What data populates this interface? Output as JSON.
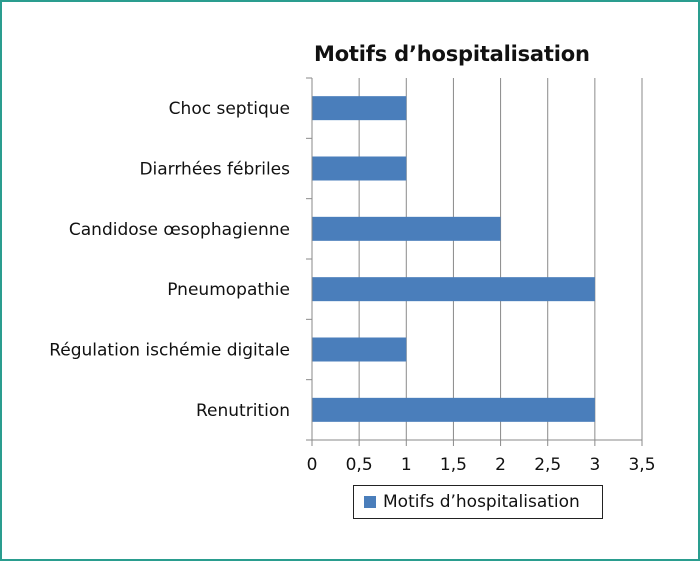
{
  "chart_data": {
    "type": "bar",
    "orientation": "horizontal",
    "title": "Motifs d’hospitalisation",
    "categories": [
      "Choc septique",
      "Diarrhées fébriles",
      "Candidose œsophagienne",
      "Pneumopathie",
      "Régulation ischémie digitale",
      "Renutrition"
    ],
    "series": [
      {
        "name": "Motifs d’hospitalisation",
        "values": [
          1,
          1,
          2,
          3,
          1,
          3
        ],
        "color": "#4a7ebb"
      }
    ],
    "xlim": [
      0,
      3.5
    ],
    "xticks": [
      "0",
      "0,5",
      "1",
      "1,5",
      "2",
      "2,5",
      "3",
      "3,5"
    ],
    "grid": "vertical",
    "legend_position": "bottom"
  }
}
